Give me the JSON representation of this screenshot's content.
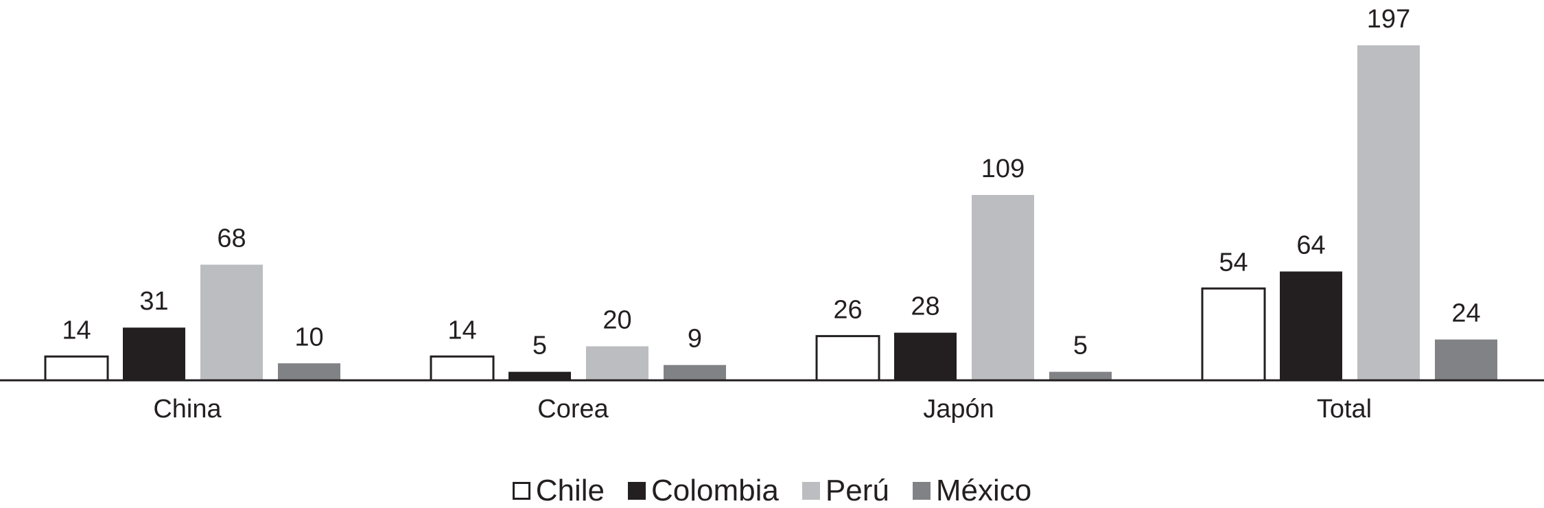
{
  "chart_data": {
    "type": "bar",
    "categories": [
      "China",
      "Corea",
      "Japón",
      "Total"
    ],
    "series": [
      {
        "name": "Chile",
        "color": "#ffffff",
        "values": [
          14,
          14,
          26,
          54
        ]
      },
      {
        "name": "Colombia",
        "color": "#231f20",
        "values": [
          31,
          5,
          28,
          64
        ]
      },
      {
        "name": "Perú",
        "color": "#bcbdc0",
        "values": [
          68,
          20,
          109,
          197
        ]
      },
      {
        "name": "México",
        "color": "#808285",
        "values": [
          10,
          9,
          5,
          24
        ]
      }
    ]
  }
}
